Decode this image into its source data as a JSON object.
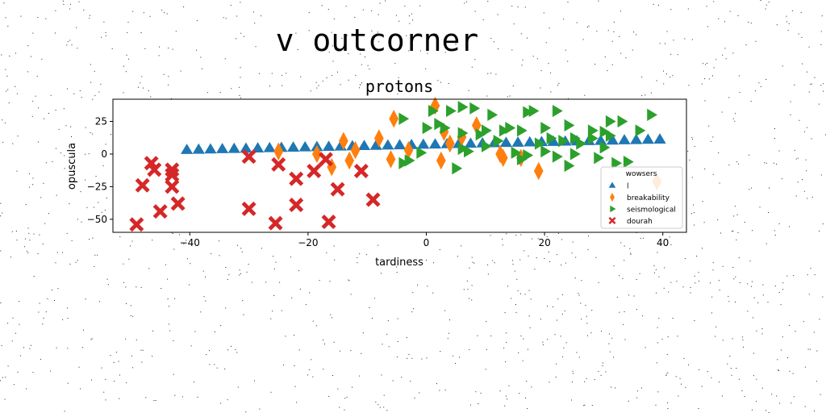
{
  "page": {
    "title": "v outcorner"
  },
  "chart_data": {
    "type": "scatter",
    "title": "protons",
    "xlabel": "tardiness",
    "ylabel": "opuscula",
    "xlim": [
      -53,
      44
    ],
    "ylim": [
      -60,
      42
    ],
    "xticks": [
      -40,
      -20,
      0,
      20,
      40
    ],
    "yticks": [
      -50,
      -25,
      0,
      25
    ],
    "xtick_labels": [
      "−40",
      "−20",
      "0",
      "20",
      "40"
    ],
    "ytick_labels": [
      "−50",
      "−25",
      "0",
      "25"
    ],
    "grid": false,
    "legend": {
      "title": "wowsers",
      "placement": "lower-right"
    },
    "series": [
      {
        "name": "l",
        "marker": "triangle-up",
        "color": "#1f77b4",
        "x": [
          -40.5,
          -38.5,
          -36.5,
          -34.5,
          -32.5,
          -30.5,
          -28.5,
          -26.5,
          -24.5,
          -22.5,
          -20.5,
          -18.5,
          -16.5,
          -14.5,
          -12.5,
          -10.5,
          -8.5,
          -6.5,
          -4.5,
          -2.5,
          -0.5,
          1.5,
          3.5,
          5.5,
          7.5,
          9.5,
          11.5,
          13.5,
          15.5,
          17.5,
          19.5,
          21.5,
          23.5,
          25.5,
          27.5,
          29.5,
          31.5,
          33.5,
          35.5,
          37.5,
          39.5
        ],
        "y": [
          3,
          3.2,
          3.4,
          3.6,
          3.8,
          4,
          4.2,
          4.4,
          4.6,
          4.8,
          5,
          5.2,
          5.4,
          5.6,
          5.8,
          6,
          6.2,
          6.4,
          6.6,
          6.8,
          7,
          7.2,
          7.4,
          7.6,
          7.8,
          8,
          8.2,
          8.4,
          8.6,
          8.8,
          9,
          9.2,
          9.4,
          9.6,
          9.8,
          10,
          10.2,
          10.4,
          10.6,
          10.8,
          11
        ]
      },
      {
        "name": "breakability",
        "marker": "thin-diamond",
        "color": "#ff7f0e",
        "x": [
          1.5,
          -5.5,
          8.5,
          3,
          6,
          13,
          -14,
          -8,
          -16,
          -12,
          -25,
          -18.5,
          -6,
          2.5,
          12.5,
          16,
          19,
          39,
          -13,
          4,
          -3
        ],
        "y": [
          37,
          27,
          22,
          17,
          13,
          -3,
          10,
          12,
          -10,
          3,
          2,
          0,
          -4,
          -5,
          0,
          -3,
          -13,
          -21,
          -5,
          8,
          3
        ]
      },
      {
        "name": "seismological",
        "marker": "triangle-right",
        "color": "#2ca02c",
        "x": [
          -4,
          1,
          4,
          6,
          8,
          11,
          13,
          16,
          17,
          18,
          20,
          22,
          24,
          25,
          28,
          31,
          33,
          36,
          38,
          29,
          30,
          -3,
          0,
          3,
          6,
          10,
          14,
          17,
          20,
          22,
          24,
          26,
          28,
          30,
          32,
          34,
          5,
          7,
          10,
          15,
          19,
          21,
          23,
          25,
          31,
          16,
          -4,
          -1,
          6,
          9,
          12,
          2
        ],
        "y": [
          27,
          33,
          33,
          36,
          35,
          30,
          18,
          18,
          32,
          33,
          20,
          33,
          22,
          12,
          18,
          25,
          25,
          18,
          30,
          -3,
          17,
          -5,
          20,
          20,
          16,
          18,
          20,
          -1,
          2,
          -2,
          -9,
          8,
          12,
          5,
          -7,
          -6,
          -11,
          2,
          6,
          1,
          8,
          12,
          10,
          0,
          14,
          -4,
          -7,
          1,
          4,
          15,
          10,
          23
        ]
      },
      {
        "name": "dourah",
        "marker": "x-filled",
        "color": "#d62728",
        "x": [
          -49,
          -46.5,
          -46,
          -43,
          -43,
          -48,
          -45,
          -42,
          -43,
          -30,
          -30,
          -25,
          -25.5,
          -22,
          -22,
          -19,
          -17,
          -16.5,
          -15,
          -11,
          -9
        ],
        "y": [
          -54,
          -7,
          -12,
          -12,
          -16,
          -24,
          -44,
          -38,
          -25,
          -2,
          -42,
          -8,
          -53,
          -19,
          -39,
          -13,
          -4,
          -52,
          -27,
          -13,
          -35
        ]
      }
    ]
  },
  "ui": {
    "colors": {
      "axis": "#000000",
      "background": "#ffffff",
      "legend_border": "#cccccc"
    }
  }
}
